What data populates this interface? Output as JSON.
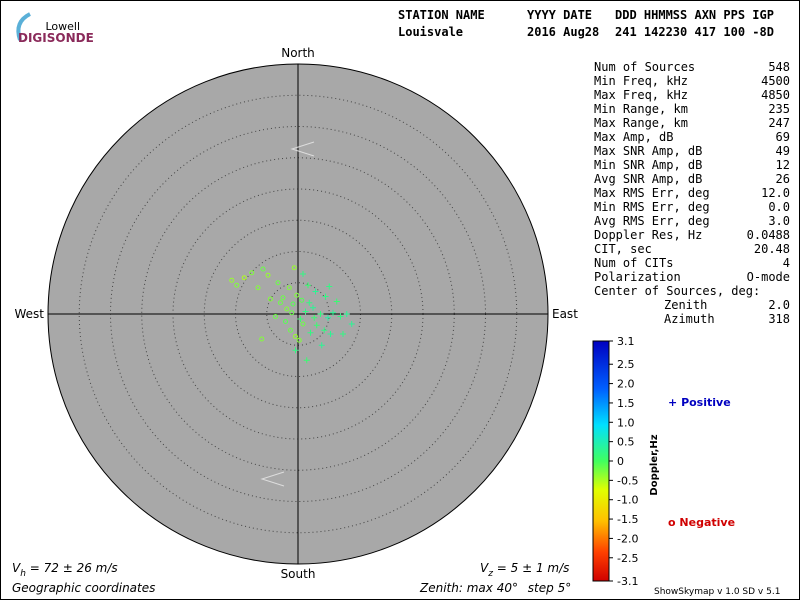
{
  "header": {
    "logo_top": "Lowell",
    "logo_bottom": "DIGISONDE",
    "labels": [
      "STATION NAME",
      "YYYY DATE",
      "DDD HHMMSS AXN PPS IGP"
    ],
    "values": [
      "Louisvale",
      "2016 Aug28",
      "241 142230 417 100 -8D"
    ]
  },
  "compass": {
    "north": "North",
    "south": "South",
    "east": "East",
    "west": "West"
  },
  "stats": [
    [
      "Num of Sources",
      "548"
    ],
    [
      "Min Freq, kHz",
      "4500"
    ],
    [
      "Max Freq, kHz",
      "4850"
    ],
    [
      "Min Range, km",
      "235"
    ],
    [
      "Max Range, km",
      "247"
    ],
    [
      "Max Amp, dB",
      "69"
    ],
    [
      "Max SNR Amp, dB",
      "49"
    ],
    [
      "Min SNR Amp, dB",
      "12"
    ],
    [
      "Avg SNR Amp, dB",
      "26"
    ],
    [
      "Max RMS Err, deg",
      "12.0"
    ],
    [
      "Min RMS Err, deg",
      "0.0"
    ],
    [
      "Avg RMS Err, deg",
      "3.0"
    ],
    [
      "Doppler Res, Hz",
      "0.0488"
    ],
    [
      "CIT, sec",
      "20.48"
    ],
    [
      "Num of CITs",
      "4"
    ],
    [
      "Polarization",
      "O-mode"
    ]
  ],
  "center": {
    "title": "Center of Sources, deg:",
    "rows": [
      [
        "Zenith",
        "2.0"
      ],
      [
        "Azimuth",
        "318"
      ]
    ]
  },
  "colorbar": {
    "title": "Doppler,Hz",
    "ticks": [
      3.1,
      2.5,
      {
        "value": 2,
        "label": "2.0"
      },
      1.5,
      {
        "value": 1,
        "label": "1.0"
      },
      0.5,
      0,
      -0.5,
      {
        "value": -1,
        "label": "-1.0"
      },
      -1.5,
      {
        "value": -2,
        "label": "-2.0"
      },
      -2.5,
      -3.1
    ]
  },
  "legend": {
    "positive_symbol": "+",
    "positive": "Positive",
    "negative_symbol": "o",
    "negative": "Negative"
  },
  "footer": {
    "vh": {
      "v": "V",
      "sub": "h",
      "text": " = 72 ± 26 m/s"
    },
    "vz": {
      "v": "V",
      "sub": "z",
      "text": " = 5 ± 1 m/s"
    },
    "coords": "Geographic coordinates",
    "version": "ShowSkymap v 1.0  SD v 5.1"
  },
  "zenith": {
    "label": "Zenith: max",
    "max": 40,
    "step_label": "step",
    "step": 5,
    "unit": "°"
  },
  "skymap": {
    "points": [
      [
        -10.6,
        5.4,
        -0.4
      ],
      [
        -9.8,
        4.6,
        -0.3
      ],
      [
        -8.6,
        5.8,
        -0.5
      ],
      [
        -7.4,
        6.6,
        -0.3
      ],
      [
        -5.6,
        7.2,
        -0.2
      ],
      [
        -4.8,
        6.2,
        -0.4
      ],
      [
        -6.4,
        4.2,
        -0.3
      ],
      [
        -3.2,
        5.0,
        -0.2
      ],
      [
        -0.6,
        7.4,
        -0.4
      ],
      [
        -1.4,
        4.2,
        -0.3
      ],
      [
        -2.4,
        2.6,
        -0.2
      ],
      [
        -0.8,
        1.6,
        -0.1
      ],
      [
        -1.8,
        0.8,
        -0.3
      ],
      [
        -3.6,
        -0.4,
        -0.2
      ],
      [
        -5.8,
        -4.0,
        -0.3
      ],
      [
        -1.2,
        -2.6,
        -0.2
      ],
      [
        -0.4,
        -3.6,
        -0.4
      ],
      [
        0.2,
        -4.2,
        -0.3
      ],
      [
        -2.8,
        1.8,
        -0.2
      ],
      [
        -0.2,
        3.0,
        -0.3
      ],
      [
        0.6,
        2.2,
        -0.1
      ],
      [
        -1.0,
        0.2,
        -0.2
      ],
      [
        0.8,
        -1.6,
        -0.2
      ],
      [
        -4.4,
        2.4,
        -0.3
      ],
      [
        -2.0,
        -1.2,
        -0.1
      ],
      [
        1.2,
        0.4,
        0.2
      ],
      [
        2.4,
        1.0,
        0.3
      ],
      [
        3.6,
        0.0,
        0.2
      ],
      [
        4.8,
        -0.6,
        0.4
      ],
      [
        5.6,
        0.2,
        0.3
      ],
      [
        6.8,
        -0.4,
        0.2
      ],
      [
        7.8,
        0.0,
        0.3
      ],
      [
        3.0,
        -1.8,
        0.1
      ],
      [
        4.2,
        -2.6,
        0.2
      ],
      [
        5.2,
        -3.2,
        0.3
      ],
      [
        2.0,
        -3.0,
        0.2
      ],
      [
        1.4,
        -7.4,
        0.1
      ],
      [
        3.8,
        -5.0,
        0.3
      ],
      [
        7.2,
        -3.2,
        0.2
      ],
      [
        6.2,
        2.0,
        0.1
      ],
      [
        4.4,
        2.8,
        0.2
      ],
      [
        2.8,
        3.6,
        0.3
      ],
      [
        0.8,
        6.4,
        0.2
      ],
      [
        1.6,
        4.6,
        0.1
      ],
      [
        5.0,
        4.4,
        0.2
      ],
      [
        8.6,
        -1.6,
        0.3
      ],
      [
        0.4,
        -0.8,
        0.1
      ],
      [
        1.8,
        1.8,
        0.2
      ],
      [
        2.6,
        -0.6,
        0.1
      ],
      [
        -0.4,
        -5.8,
        0.2
      ]
    ]
  }
}
